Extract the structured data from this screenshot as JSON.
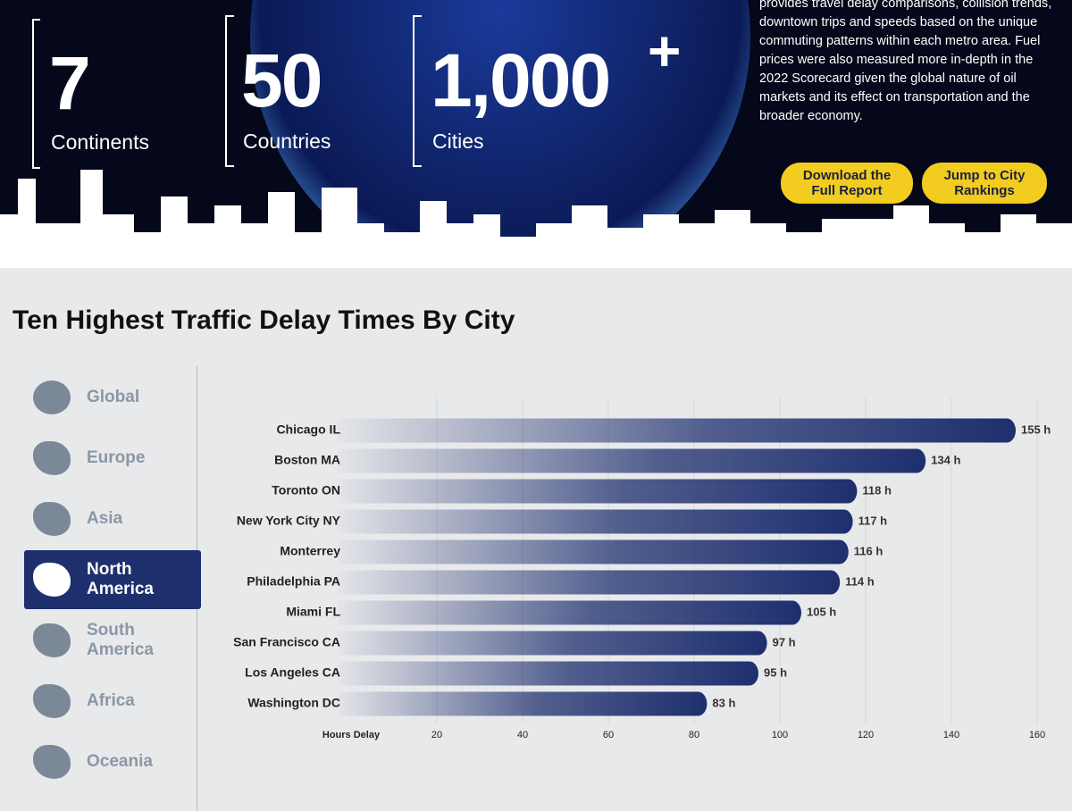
{
  "header": {
    "stats": [
      {
        "number": "7",
        "label": "Continents"
      },
      {
        "number": "50",
        "label": "Countries"
      },
      {
        "number": "1,000",
        "suffix": "+",
        "label": "Cities"
      }
    ],
    "description": "provides travel delay comparisons, collision trends, downtown trips and speeds based on the unique commuting patterns within each metro area. Fuel prices were also measured more in-depth in the 2022 Scorecard given the global nature of oil markets and its effect on transportation and the broader economy.",
    "buttons": [
      "Download the Full Report",
      "Jump to City Rankings"
    ]
  },
  "sidebar": {
    "tabs": [
      "Global",
      "Europe",
      "Asia",
      "North America",
      "South America",
      "Africa",
      "Oceania"
    ],
    "active": 3
  },
  "chart_data": {
    "type": "bar",
    "horizontal": true,
    "title": "Ten Highest Traffic Delay Times By City",
    "categories": [
      "Chicago IL",
      "Boston MA",
      "Toronto ON",
      "New York City NY",
      "Monterrey",
      "Philadelphia PA",
      "Miami FL",
      "San Francisco CA",
      "Los Angeles CA",
      "Washington DC"
    ],
    "values": [
      155,
      134,
      118,
      117,
      116,
      114,
      105,
      97,
      95,
      83
    ],
    "value_labels": [
      "155 h",
      "134 h",
      "118 h",
      "117 h",
      "116 h",
      "114 h",
      "105 h",
      "97 h",
      "95 h",
      "83 h"
    ],
    "color": "#1e2f6e",
    "xlabel": "Hours Delay",
    "xlim": [
      0,
      165
    ],
    "xticks": [
      20,
      40,
      60,
      80,
      100,
      120,
      140,
      160
    ],
    "grid": true
  }
}
